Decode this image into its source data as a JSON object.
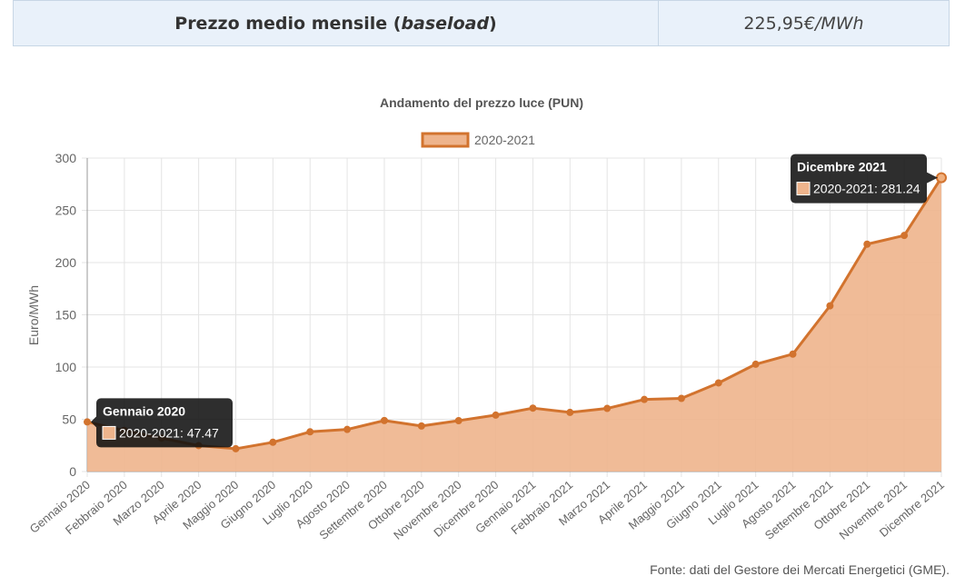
{
  "summary": {
    "label_main": "Prezzo medio mensile (",
    "label_italic": "baseload",
    "label_close": ")",
    "value_number": "225,95 ",
    "value_unit": "€/MWh"
  },
  "chart_data": {
    "type": "area",
    "title": "Andamento del prezzo luce (PUN)",
    "ylabel": "Euro/MWh",
    "xlabel": "",
    "ylim": [
      0,
      300
    ],
    "yticks": [
      0,
      50,
      100,
      150,
      200,
      250,
      300
    ],
    "grid": true,
    "legend": "top-center",
    "categories": [
      "Gennaio 2020",
      "Febbraio 2020",
      "Marzo 2020",
      "Aprile 2020",
      "Maggio 2020",
      "Giugno 2020",
      "Luglio 2020",
      "Agosto 2020",
      "Settembre 2020",
      "Ottobre 2020",
      "Novembre 2020",
      "Dicembre 2020",
      "Gennaio 2021",
      "Febbraio 2021",
      "Marzo 2021",
      "Aprile 2021",
      "Maggio 2021",
      "Giugno 2021",
      "Luglio 2021",
      "Agosto 2021",
      "Settembre 2021",
      "Ottobre 2021",
      "Novembre 2021",
      "Dicembre 2021"
    ],
    "series": [
      {
        "name": "2020-2021",
        "values": [
          47.47,
          39.3,
          32.0,
          24.8,
          21.8,
          28.0,
          38.0,
          40.3,
          48.8,
          43.6,
          48.7,
          54.0,
          60.7,
          56.6,
          60.4,
          69.0,
          70.0,
          84.8,
          102.7,
          112.4,
          158.6,
          217.6,
          225.95,
          281.24
        ]
      }
    ],
    "colors": {
      "line": "#d2732e",
      "fill": "#eeb48c",
      "grid": "#e4e4e4",
      "axis": "#666666"
    },
    "tooltips": [
      {
        "title": "Gennaio 2020",
        "text": "2020-2021: 47.47",
        "index": 0
      },
      {
        "title": "Dicembre 2021",
        "text": "2020-2021: 281.24",
        "index": 23
      }
    ]
  },
  "source": "Fonte: dati del Gestore dei Mercati Energetici (GME)."
}
